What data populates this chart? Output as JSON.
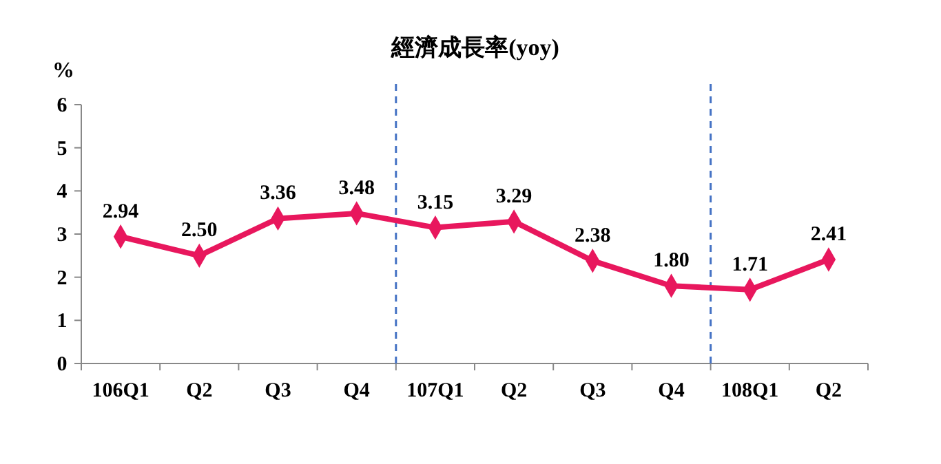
{
  "chart_data": {
    "type": "line",
    "title": "經濟成長率(yoy)",
    "ylabel": "%",
    "categories": [
      "106Q1",
      "Q2",
      "Q3",
      "Q4",
      "107Q1",
      "Q2",
      "Q3",
      "Q4",
      "108Q1",
      "Q2"
    ],
    "series": [
      {
        "color": "#e8175d",
        "values": [
          2.94,
          2.5,
          3.36,
          3.48,
          3.15,
          3.29,
          2.38,
          1.8,
          1.71,
          2.41
        ],
        "value_labels": [
          "2.94",
          "2.50",
          "3.36",
          "3.48",
          "3.15",
          "3.29",
          "2.38",
          "1.80",
          "1.71",
          "2.41"
        ]
      }
    ],
    "ylim": [
      0,
      6
    ],
    "yticks": [
      0,
      1,
      2,
      3,
      4,
      5,
      6
    ],
    "marker": "diamond",
    "line_style": "solid"
  }
}
